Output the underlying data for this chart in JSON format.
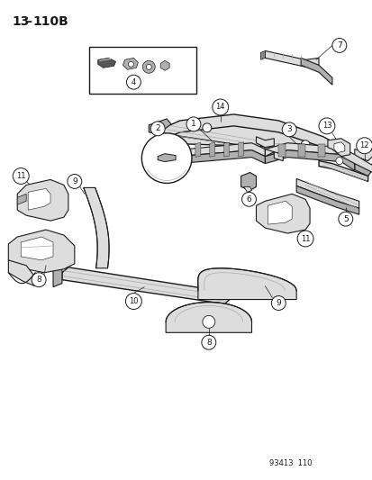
{
  "title": "13-110B",
  "footer": "93413  110",
  "bg_color": "#f5f5f5",
  "line_color": "#1a1a1a",
  "title_fontsize": 11,
  "footer_fontsize": 6.5,
  "fig_w": 4.14,
  "fig_h": 5.33,
  "dpi": 100
}
